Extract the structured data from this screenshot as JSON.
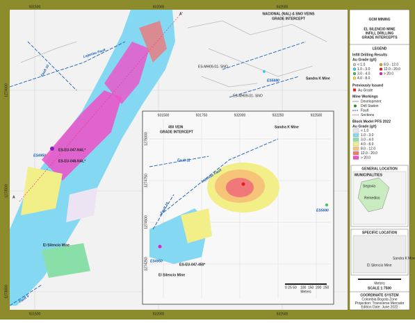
{
  "header": {
    "logo": "GCM MINING",
    "title": [
      "EL SILENCIO MINE",
      "INFILL DRILLING",
      "GRADE INTERCEPTS"
    ]
  },
  "main_map": {
    "x_labels": [
      "931500",
      "932000",
      "932500"
    ],
    "y_labels": [
      "1274000",
      "1273500",
      "1273000"
    ],
    "section_labels": [
      "A'",
      "A"
    ],
    "callout": [
      "NACIONAL (NAL) & SNO VEINS",
      "GRADE INTERCEPT"
    ],
    "faults": [
      "Lejanias Fault",
      "Fault 10",
      "Fault 9"
    ],
    "holes": [
      "ES-MH09-01- SNO",
      "ES5690",
      "ES4950",
      "ES-EU-047-NAL*",
      "ES-EU-048-NAL*"
    ],
    "mines": [
      "Sandra K Mine",
      "El Silencio Mine"
    ]
  },
  "inset": {
    "x_labels": [
      "931500",
      "931750",
      "932000",
      "932250",
      "932500"
    ],
    "y_labels": [
      "1275000",
      "1274750",
      "1274500",
      "1274250"
    ],
    "callout": [
      "450 VEIN",
      "GRADE INTERCEPT"
    ],
    "faults": [
      "Fault 11",
      "Lejanias Fault",
      "Fault 10"
    ],
    "holes": [
      "ES5690",
      "ES4950",
      "ES-EU-047-450*"
    ],
    "mines": [
      "Sandra K Mine",
      "El Silencio Mine"
    ],
    "scale": [
      "0 25 50",
      "100",
      "150",
      "200",
      "250"
    ],
    "scale_unit": "Meters"
  },
  "legend": {
    "heading": "LEGEND",
    "infill": {
      "title": "Infill Drilling Results",
      "unit": "Au Grade (g/t)",
      "items": [
        {
          "label": "< 1.0",
          "color": "#c8c8c8"
        },
        {
          "label": "1.0 - 3.0",
          "color": "#40c8f0"
        },
        {
          "label": "3.0 - 4.0",
          "color": "#40c060"
        },
        {
          "label": "4.0 - 8.0",
          "color": "#f0e030"
        },
        {
          "label": "8.0 - 12.0",
          "color": "#f0a020"
        },
        {
          "label": "12.0 - 20.0",
          "color": "#e02020"
        },
        {
          "label": "> 20.0",
          "color": "#e020d0"
        }
      ]
    },
    "previous": {
      "title": "Previously Issued",
      "item": "Au Grade"
    },
    "workings": {
      "title": "Mine Workings",
      "items": [
        "Development",
        "Drill Station",
        "Fault",
        "Sections"
      ]
    },
    "block": {
      "title": "Block Model PFS 2022",
      "unit": "Au Grade (g/t)",
      "items": [
        {
          "label": "< 1.0",
          "color": "#ece4f2"
        },
        {
          "label": "1.0 - 3.0",
          "color": "#84d8f2"
        },
        {
          "label": "3.0 - 4.0",
          "color": "#88e0a8"
        },
        {
          "label": "4.0 - 8.0",
          "color": "#f2ee88"
        },
        {
          "label": "8.0 - 12.0",
          "color": "#f6c478"
        },
        {
          "label": "12.0 - 20.0",
          "color": "#f07878"
        },
        {
          "label": "> 20.0",
          "color": "#f050c8"
        }
      ]
    }
  },
  "general_location": {
    "title": "GENERAL LOCATION",
    "subtitle": "MUNICIPALITIES",
    "places": [
      "Segovia",
      "Remedios"
    ]
  },
  "specific_location": {
    "title": "SPECIFIC LOCATION",
    "places": [
      "El Silencio Mine",
      "Sandra K Mine"
    ]
  },
  "scale": {
    "unit": "Meters",
    "ratio": "SCALE 1:7500"
  },
  "coordinate_system": {
    "title": "COORDINATE SYSTEM",
    "lines": [
      "Colombia Bogota Zone",
      "Projection: Transverse Mercator",
      "Edition Date: June 2022"
    ]
  }
}
